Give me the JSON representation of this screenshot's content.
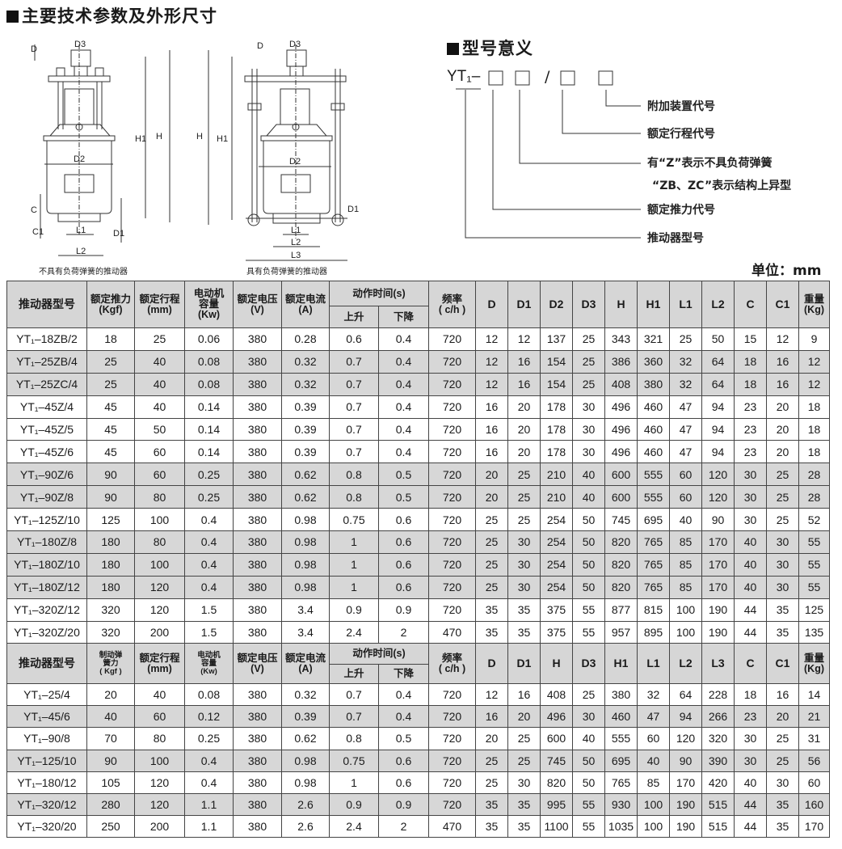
{
  "section_specs": {
    "title": "主要技术参数及外形尺寸"
  },
  "section_model": {
    "title": "型号意义"
  },
  "diagrams": {
    "left_caption": "不具有负荷弹簧的推动器",
    "right_caption": "具有负荷弹簧的推动器",
    "labels": {
      "D3": "D3",
      "D": "D",
      "H1": "H1",
      "H": "H",
      "D2": "D2",
      "C": "C",
      "C1": "C1",
      "L1": "L1",
      "L2": "L2",
      "L3": "L3",
      "D1": "D1"
    }
  },
  "model_code": {
    "prefix": "YT₁–",
    "slash": "/",
    "items": [
      "附加装置代号",
      "额定行程代号",
      "有“Z”表示不具负荷弹簧",
      "“ZB、ZC”表示结构上异型",
      "额定推力代号",
      "推动器型号"
    ]
  },
  "unit": "单位：mm",
  "table1": {
    "headers": {
      "model": "推动器型号",
      "thrust": "额定推力",
      "thrust_unit": "(Kgf)",
      "stroke": "额定行程",
      "stroke_unit": "(mm)",
      "motor": "电动机容量",
      "motor_unit": "(Kw)",
      "voltage": "额定电压",
      "voltage_unit": "(V)",
      "current": "额定电流",
      "current_unit": "(A)",
      "time": "动作时间(s)",
      "up": "上升",
      "down": "下降",
      "freq": "频率",
      "freq_unit": "( c/h )",
      "dims": [
        "D",
        "D1",
        "D2",
        "D3",
        "H",
        "H1",
        "L1",
        "L2",
        "C",
        "C1"
      ],
      "weight": "重量",
      "weight_unit": "(Kg)"
    },
    "shaded": [
      false,
      true,
      true,
      false,
      false,
      false,
      true,
      true,
      false,
      true,
      true,
      true,
      false,
      false
    ],
    "rows": [
      [
        "YT₁–18ZB/2",
        "18",
        "25",
        "0.06",
        "380",
        "0.28",
        "0.6",
        "0.4",
        "720",
        "12",
        "12",
        "137",
        "25",
        "343",
        "321",
        "25",
        "50",
        "15",
        "12",
        "9"
      ],
      [
        "YT₁–25ZB/4",
        "25",
        "40",
        "0.08",
        "380",
        "0.32",
        "0.7",
        "0.4",
        "720",
        "12",
        "16",
        "154",
        "25",
        "386",
        "360",
        "32",
        "64",
        "18",
        "16",
        "12"
      ],
      [
        "YT₁–25ZC/4",
        "25",
        "40",
        "0.08",
        "380",
        "0.32",
        "0.7",
        "0.4",
        "720",
        "12",
        "16",
        "154",
        "25",
        "408",
        "380",
        "32",
        "64",
        "18",
        "16",
        "12"
      ],
      [
        "YT₁–45Z/4",
        "45",
        "40",
        "0.14",
        "380",
        "0.39",
        "0.7",
        "0.4",
        "720",
        "16",
        "20",
        "178",
        "30",
        "496",
        "460",
        "47",
        "94",
        "23",
        "20",
        "18"
      ],
      [
        "YT₁–45Z/5",
        "45",
        "50",
        "0.14",
        "380",
        "0.39",
        "0.7",
        "0.4",
        "720",
        "16",
        "20",
        "178",
        "30",
        "496",
        "460",
        "47",
        "94",
        "23",
        "20",
        "18"
      ],
      [
        "YT₁–45Z/6",
        "45",
        "60",
        "0.14",
        "380",
        "0.39",
        "0.7",
        "0.4",
        "720",
        "16",
        "20",
        "178",
        "30",
        "496",
        "460",
        "47",
        "94",
        "23",
        "20",
        "18"
      ],
      [
        "YT₁–90Z/6",
        "90",
        "60",
        "0.25",
        "380",
        "0.62",
        "0.8",
        "0.5",
        "720",
        "20",
        "25",
        "210",
        "40",
        "600",
        "555",
        "60",
        "120",
        "30",
        "25",
        "28"
      ],
      [
        "YT₁–90Z/8",
        "90",
        "80",
        "0.25",
        "380",
        "0.62",
        "0.8",
        "0.5",
        "720",
        "20",
        "25",
        "210",
        "40",
        "600",
        "555",
        "60",
        "120",
        "30",
        "25",
        "28"
      ],
      [
        "YT₁–125Z/10",
        "125",
        "100",
        "0.4",
        "380",
        "0.98",
        "0.75",
        "0.6",
        "720",
        "25",
        "25",
        "254",
        "50",
        "745",
        "695",
        "40",
        "90",
        "30",
        "25",
        "52"
      ],
      [
        "YT₁–180Z/8",
        "180",
        "80",
        "0.4",
        "380",
        "0.98",
        "1",
        "0.6",
        "720",
        "25",
        "30",
        "254",
        "50",
        "820",
        "765",
        "85",
        "170",
        "40",
        "30",
        "55"
      ],
      [
        "YT₁–180Z/10",
        "180",
        "100",
        "0.4",
        "380",
        "0.98",
        "1",
        "0.6",
        "720",
        "25",
        "30",
        "254",
        "50",
        "820",
        "765",
        "85",
        "170",
        "40",
        "30",
        "55"
      ],
      [
        "YT₁–180Z/12",
        "180",
        "120",
        "0.4",
        "380",
        "0.98",
        "1",
        "0.6",
        "720",
        "25",
        "30",
        "254",
        "50",
        "820",
        "765",
        "85",
        "170",
        "40",
        "30",
        "55"
      ],
      [
        "YT₁–320Z/12",
        "320",
        "120",
        "1.5",
        "380",
        "3.4",
        "0.9",
        "0.9",
        "720",
        "35",
        "35",
        "375",
        "55",
        "877",
        "815",
        "100",
        "190",
        "44",
        "35",
        "125"
      ],
      [
        "YT₁–320Z/20",
        "320",
        "200",
        "1.5",
        "380",
        "3.4",
        "2.4",
        "2",
        "470",
        "35",
        "35",
        "375",
        "55",
        "957",
        "895",
        "100",
        "190",
        "44",
        "35",
        "135"
      ]
    ]
  },
  "table2": {
    "headers": {
      "model": "推动器型号",
      "spring": "制动弹簧力",
      "spring_unit": "( Kgf )",
      "stroke": "额定行程",
      "stroke_unit": "(mm)",
      "motor": "电动机容量",
      "motor_unit": "(Kw)",
      "voltage": "额定电压",
      "voltage_unit": "(V)",
      "current": "额定电流",
      "current_unit": "(A)",
      "time": "动作时间(s)",
      "up": "上升",
      "down": "下降",
      "freq": "频率",
      "freq_unit": "( c/h )",
      "dims": [
        "D",
        "D1",
        "H",
        "D3",
        "H1",
        "L1",
        "L2",
        "L3",
        "C",
        "C1"
      ],
      "weight": "重量",
      "weight_unit": "(Kg)"
    },
    "shaded": [
      false,
      true,
      false,
      true,
      false,
      true,
      false
    ],
    "rows": [
      [
        "YT₁–25/4",
        "20",
        "40",
        "0.08",
        "380",
        "0.32",
        "0.7",
        "0.4",
        "720",
        "12",
        "16",
        "408",
        "25",
        "380",
        "32",
        "64",
        "228",
        "18",
        "16",
        "14"
      ],
      [
        "YT₁–45/6",
        "40",
        "60",
        "0.12",
        "380",
        "0.39",
        "0.7",
        "0.4",
        "720",
        "16",
        "20",
        "496",
        "30",
        "460",
        "47",
        "94",
        "266",
        "23",
        "20",
        "21"
      ],
      [
        "YT₁–90/8",
        "70",
        "80",
        "0.25",
        "380",
        "0.62",
        "0.8",
        "0.5",
        "720",
        "20",
        "25",
        "600",
        "40",
        "555",
        "60",
        "120",
        "320",
        "30",
        "25",
        "31"
      ],
      [
        "YT₁–125/10",
        "90",
        "100",
        "0.4",
        "380",
        "0.98",
        "0.75",
        "0.6",
        "720",
        "25",
        "25",
        "745",
        "50",
        "695",
        "40",
        "90",
        "390",
        "30",
        "25",
        "56"
      ],
      [
        "YT₁–180/12",
        "105",
        "120",
        "0.4",
        "380",
        "0.98",
        "1",
        "0.6",
        "720",
        "25",
        "30",
        "820",
        "50",
        "765",
        "85",
        "170",
        "420",
        "40",
        "30",
        "60"
      ],
      [
        "YT₁–320/12",
        "280",
        "120",
        "1.1",
        "380",
        "2.6",
        "0.9",
        "0.9",
        "720",
        "35",
        "35",
        "995",
        "55",
        "930",
        "100",
        "190",
        "515",
        "44",
        "35",
        "160"
      ],
      [
        "YT₁–320/20",
        "250",
        "200",
        "1.1",
        "380",
        "2.6",
        "2.4",
        "2",
        "470",
        "35",
        "35",
        "1100",
        "55",
        "1035",
        "100",
        "190",
        "515",
        "44",
        "35",
        "170"
      ]
    ]
  }
}
